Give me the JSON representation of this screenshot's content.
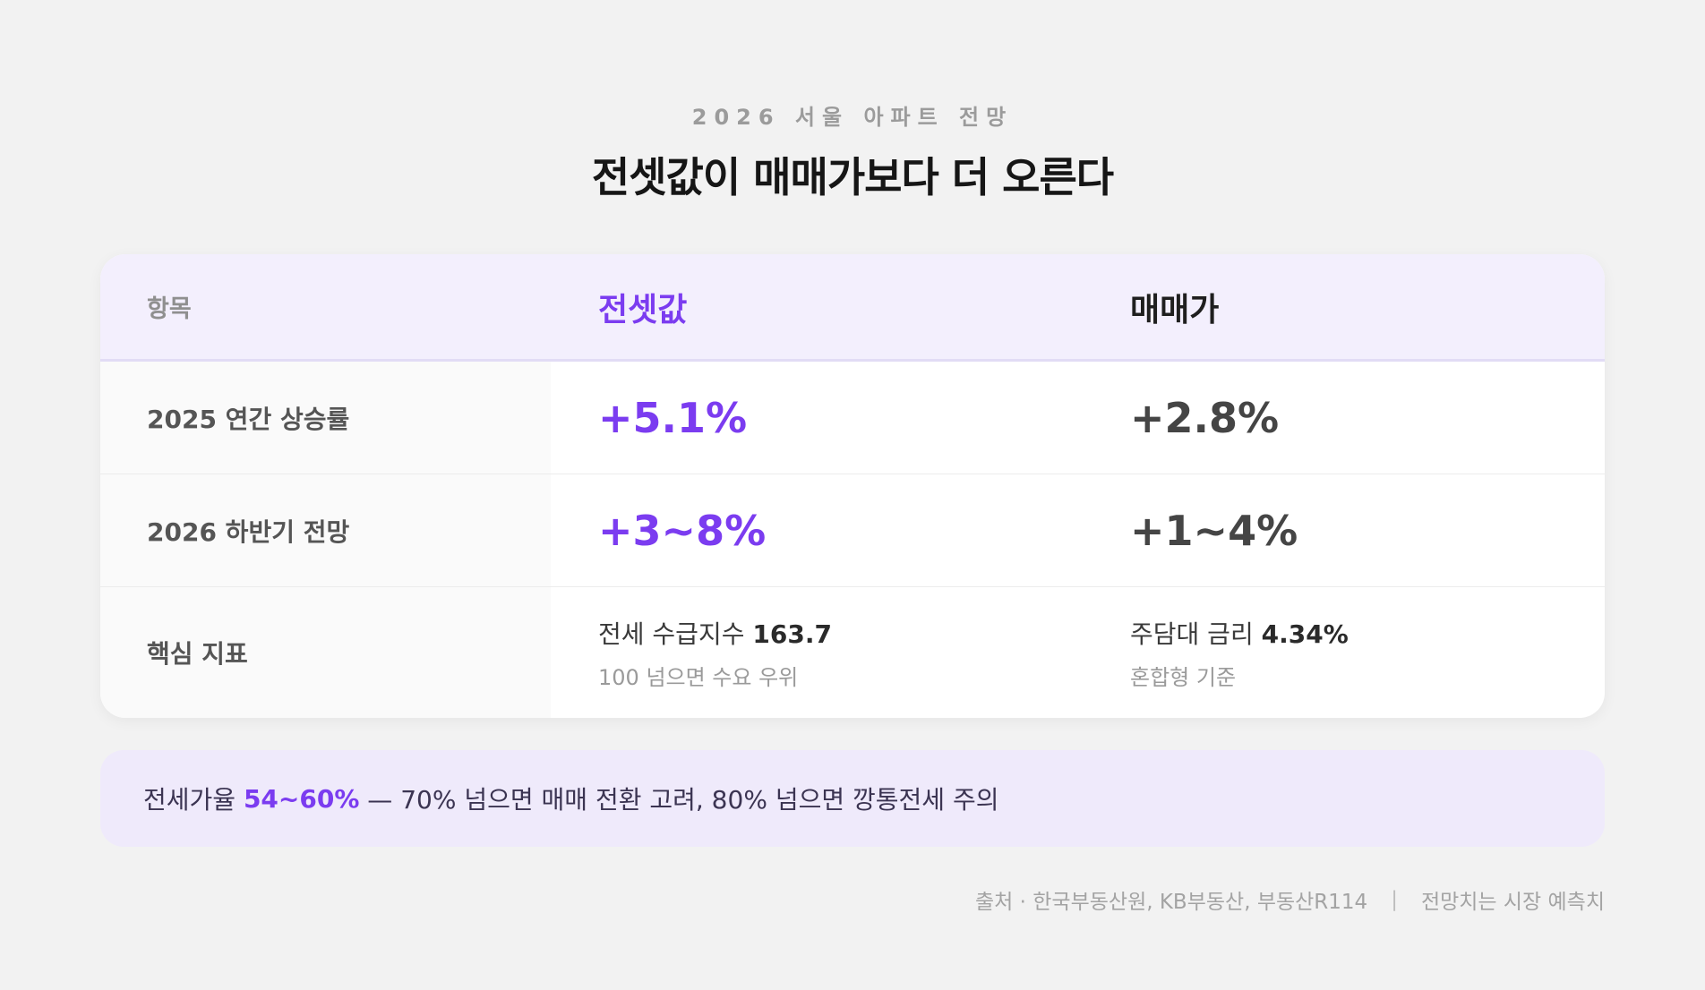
{
  "header": {
    "eyebrow": "2026 서울 아파트 전망",
    "title": "전셋값이 매매가보다 더 오른다"
  },
  "table": {
    "columns": {
      "label": "항목",
      "jeonse": "전셋값",
      "maemae": "매매가"
    },
    "rows": [
      {
        "label": "2025 연간 상승률",
        "jeonse": "+5.1%",
        "maemae": "+2.8%"
      },
      {
        "label": "2026 하반기 전망",
        "jeonse": "+3~8%",
        "maemae": "+1~4%"
      }
    ],
    "indicator": {
      "label": "핵심 지표",
      "jeonse_prefix": "전세 수급지수 ",
      "jeonse_value": "163.7",
      "jeonse_sub": "100 넘으면 수요 우위",
      "maemae_prefix": "주담대 금리 ",
      "maemae_value": "4.34%",
      "maemae_sub": "혼합형 기준"
    }
  },
  "note": {
    "prefix": "전세가율 ",
    "highlight": "54~60%",
    "suffix": " — 70% 넘으면 매매 전환 고려, 80% 넘으면 깡통전세 주의"
  },
  "footer": {
    "source": "출처 · 한국부동산원, KB부동산, 부동산R114",
    "separator": "|",
    "disclaimer": "전망치는 시장 예측치"
  },
  "colors": {
    "accent": "#7b3cf0",
    "background": "#f2f2f2",
    "header_row": "#f3effd",
    "note_bg": "#efeafb"
  }
}
